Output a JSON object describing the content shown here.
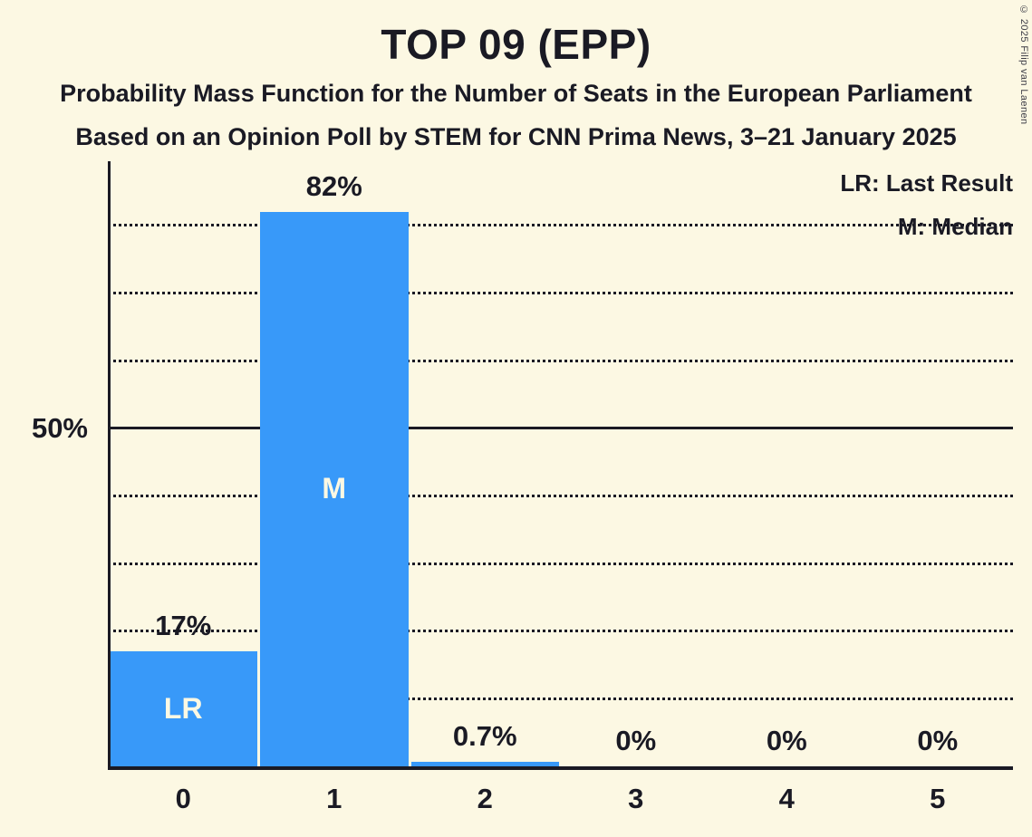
{
  "page": {
    "title": "TOP 09 (EPP)",
    "subtitle1": "Probability Mass Function for the Number of Seats in the European Parliament",
    "subtitle2": "Based on an Opinion Poll by STEM for CNN Prima News, 3–21 January 2025",
    "copyright": "© 2025 Filip van Laenen"
  },
  "legend": {
    "lr_label": "LR: Last Result",
    "m_label": "M: Median"
  },
  "colors": {
    "background": "#FCF8E3",
    "bar": "#3899F9",
    "text": "#1A1A24",
    "bar_annotation_text": "#FCF8E3"
  },
  "chart_data": {
    "type": "bar",
    "title": "TOP 09 (EPP)",
    "categories": [
      "0",
      "1",
      "2",
      "3",
      "4",
      "5"
    ],
    "values": [
      17,
      82,
      0.7,
      0,
      0,
      0
    ],
    "value_labels": [
      "17%",
      "82%",
      "0.7%",
      "0%",
      "0%",
      "0%"
    ],
    "bar_annotations": [
      "LR",
      "M",
      null,
      null,
      null,
      null
    ],
    "xlabel": "",
    "ylabel": "",
    "ylim": [
      0,
      89.5
    ],
    "ytick_solid": {
      "value": 50,
      "label": "50%"
    },
    "ydotted": [
      10,
      20,
      30,
      40,
      60,
      70,
      80
    ],
    "grid": "horizontal-dotted",
    "legend_position": "top-right"
  }
}
